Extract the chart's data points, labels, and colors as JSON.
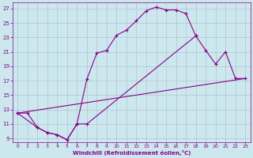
{
  "xlabel": "Windchill (Refroidissement éolien,°C)",
  "bg_color": "#cce8ee",
  "line_color": "#880088",
  "grid_color": "#aabbcc",
  "xlim": [
    -0.5,
    23.5
  ],
  "ylim": [
    8.5,
    27.8
  ],
  "xticks": [
    0,
    1,
    2,
    3,
    4,
    5,
    6,
    7,
    8,
    9,
    10,
    11,
    12,
    13,
    14,
    15,
    16,
    17,
    18,
    19,
    20,
    21,
    22,
    23
  ],
  "yticks": [
    9,
    11,
    13,
    15,
    17,
    19,
    21,
    23,
    25,
    27
  ],
  "curve1_x": [
    0,
    1,
    2,
    3,
    4,
    5,
    6,
    7,
    8,
    9,
    10,
    11,
    12,
    13,
    14,
    15,
    16,
    17,
    18
  ],
  "curve1_y": [
    12.5,
    12.5,
    10.5,
    9.8,
    9.5,
    8.8,
    11.0,
    17.2,
    20.8,
    21.2,
    23.3,
    24.0,
    25.3,
    26.7,
    27.2,
    26.8,
    26.8,
    26.3,
    23.2
  ],
  "curve2_x": [
    0,
    2,
    3,
    4,
    5,
    6,
    7,
    18,
    19,
    20,
    21,
    22,
    23
  ],
  "curve2_y": [
    12.5,
    10.5,
    9.8,
    9.5,
    8.8,
    11.0,
    11.0,
    23.2,
    21.2,
    19.3,
    21.0,
    17.3,
    17.3
  ],
  "curve3_x": [
    0,
    23
  ],
  "curve3_y": [
    12.5,
    17.3
  ],
  "line1_x": [
    0,
    23
  ],
  "line1_y": [
    12.5,
    17.3
  ]
}
